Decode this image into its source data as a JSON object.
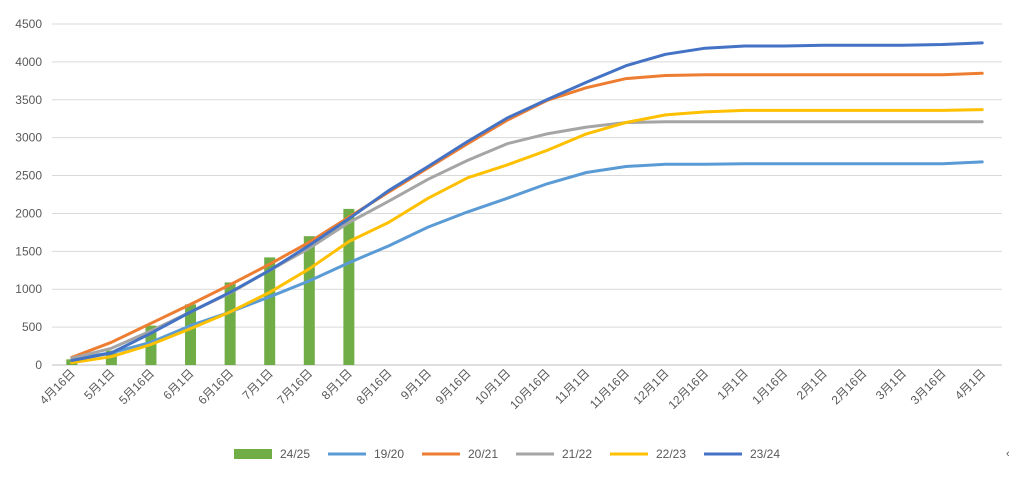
{
  "chart_data": {
    "type": "line",
    "title": "",
    "xlabel": "",
    "ylabel": "",
    "ylim": [
      0,
      4500
    ],
    "yticks": [
      0,
      500,
      1000,
      1500,
      2000,
      2500,
      3000,
      3500,
      4000,
      4500
    ],
    "grid": true,
    "legend_position": "bottom",
    "categories": [
      "4月16日",
      "5月1日",
      "5月16日",
      "6月1日",
      "6月16日",
      "7月1日",
      "7月16日",
      "8月1日",
      "8月16日",
      "9月1日",
      "9月16日",
      "10月1日",
      "10月16日",
      "11月1日",
      "11月16日",
      "12月1日",
      "12月16日",
      "1月1日",
      "1月16日",
      "2月1日",
      "2月16日",
      "3月1日",
      "3月16日",
      "4月1日"
    ],
    "bar_series": {
      "name": "24/25",
      "color": "#70AD47",
      "values": [
        75,
        190,
        520,
        800,
        1090,
        1420,
        1700,
        2060
      ]
    },
    "series": [
      {
        "name": "19/20",
        "color": "#5B9BD5",
        "values": [
          80,
          160,
          300,
          520,
          700,
          900,
          1110,
          1350,
          1570,
          1820,
          2020,
          2200,
          2390,
          2540,
          2620,
          2650,
          2650,
          2655,
          2655,
          2655,
          2655,
          2655,
          2655,
          2680
        ]
      },
      {
        "name": "20/21",
        "color": "#ED7D31",
        "values": [
          100,
          300,
          550,
          800,
          1060,
          1330,
          1620,
          1950,
          2280,
          2600,
          2920,
          3230,
          3490,
          3660,
          3780,
          3820,
          3830,
          3830,
          3830,
          3830,
          3830,
          3830,
          3830,
          3850
        ]
      },
      {
        "name": "21/22",
        "color": "#A5A5A5",
        "values": [
          90,
          220,
          450,
          700,
          950,
          1250,
          1540,
          1880,
          2160,
          2450,
          2700,
          2920,
          3050,
          3140,
          3200,
          3210,
          3210,
          3210,
          3210,
          3210,
          3210,
          3210,
          3210,
          3210
        ]
      },
      {
        "name": "22/23",
        "color": "#FFC000",
        "values": [
          30,
          110,
          270,
          480,
          700,
          960,
          1270,
          1630,
          1880,
          2200,
          2470,
          2640,
          2830,
          3050,
          3200,
          3300,
          3340,
          3360,
          3360,
          3360,
          3360,
          3360,
          3360,
          3370
        ]
      },
      {
        "name": "23/24",
        "color": "#4472C4",
        "values": [
          60,
          160,
          420,
          700,
          960,
          1250,
          1580,
          1930,
          2300,
          2620,
          2950,
          3260,
          3500,
          3730,
          3950,
          4100,
          4180,
          4210,
          4210,
          4220,
          4220,
          4220,
          4230,
          4250
        ]
      }
    ]
  }
}
